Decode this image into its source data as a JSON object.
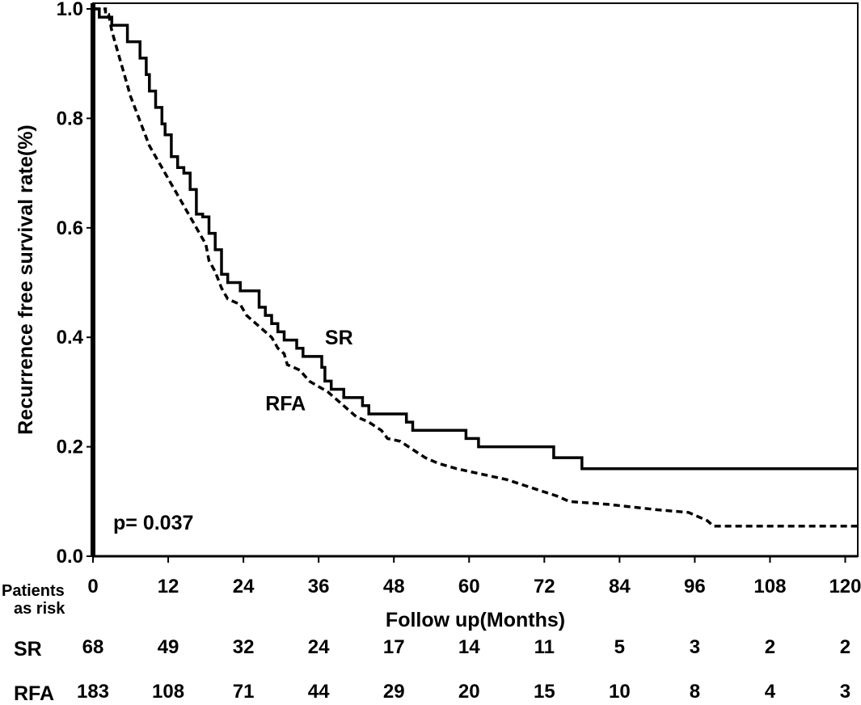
{
  "chart_data": {
    "type": "line",
    "title": "",
    "xlabel": "Follow up(Months)",
    "ylabel": "Recurrence free survival rate(%)",
    "xlim": [
      0,
      122
    ],
    "ylim": [
      0,
      1.0
    ],
    "x_ticks": [
      0,
      12,
      24,
      36,
      48,
      60,
      72,
      84,
      96,
      108,
      120
    ],
    "x_tick_labels": [
      "0",
      "12",
      "24",
      "36",
      "48",
      "60",
      "72",
      "84",
      "96",
      "108",
      "120"
    ],
    "y_ticks": [
      0,
      0.2,
      0.4,
      0.6,
      0.8,
      1.0
    ],
    "y_tick_labels": [
      "0.0",
      "0.2",
      "0.4",
      "0.6",
      "0.8",
      "1.0"
    ],
    "grid": false,
    "series": [
      {
        "name": "SR",
        "style": "solid",
        "label_at": [
          37,
          0.4
        ],
        "points": [
          [
            0,
            1.0
          ],
          [
            1,
            1.0
          ],
          [
            1,
            0.985
          ],
          [
            3,
            0.985
          ],
          [
            3,
            0.97
          ],
          [
            5.5,
            0.97
          ],
          [
            5.5,
            0.94
          ],
          [
            7.5,
            0.94
          ],
          [
            7.5,
            0.91
          ],
          [
            8.5,
            0.91
          ],
          [
            8.5,
            0.88
          ],
          [
            9,
            0.88
          ],
          [
            9,
            0.85
          ],
          [
            10,
            0.85
          ],
          [
            10,
            0.82
          ],
          [
            11,
            0.82
          ],
          [
            11,
            0.79
          ],
          [
            11.5,
            0.79
          ],
          [
            11.5,
            0.77
          ],
          [
            12.5,
            0.77
          ],
          [
            12.5,
            0.73
          ],
          [
            13.5,
            0.73
          ],
          [
            13.5,
            0.71
          ],
          [
            14.5,
            0.71
          ],
          [
            14.5,
            0.7
          ],
          [
            15.5,
            0.7
          ],
          [
            15.5,
            0.67
          ],
          [
            16.5,
            0.67
          ],
          [
            16.5,
            0.625
          ],
          [
            17.5,
            0.625
          ],
          [
            17.5,
            0.62
          ],
          [
            18.5,
            0.62
          ],
          [
            18.5,
            0.59
          ],
          [
            19.5,
            0.59
          ],
          [
            19.5,
            0.56
          ],
          [
            20.5,
            0.56
          ],
          [
            20.5,
            0.515
          ],
          [
            21.5,
            0.515
          ],
          [
            21.5,
            0.5
          ],
          [
            23.5,
            0.5
          ],
          [
            23.5,
            0.485
          ],
          [
            26.5,
            0.485
          ],
          [
            26.5,
            0.455
          ],
          [
            27.5,
            0.455
          ],
          [
            27.5,
            0.44
          ],
          [
            28.5,
            0.44
          ],
          [
            28.5,
            0.425
          ],
          [
            29.5,
            0.425
          ],
          [
            29.5,
            0.41
          ],
          [
            30.5,
            0.41
          ],
          [
            30.5,
            0.395
          ],
          [
            32.5,
            0.395
          ],
          [
            32.5,
            0.38
          ],
          [
            33.5,
            0.38
          ],
          [
            33.5,
            0.365
          ],
          [
            36.5,
            0.365
          ],
          [
            36.5,
            0.345
          ],
          [
            37,
            0.345
          ],
          [
            37,
            0.32
          ],
          [
            38,
            0.32
          ],
          [
            38,
            0.305
          ],
          [
            40,
            0.305
          ],
          [
            40,
            0.29
          ],
          [
            43,
            0.29
          ],
          [
            43,
            0.275
          ],
          [
            44,
            0.275
          ],
          [
            44,
            0.26
          ],
          [
            50,
            0.26
          ],
          [
            50,
            0.245
          ],
          [
            51,
            0.245
          ],
          [
            51,
            0.23
          ],
          [
            59.5,
            0.23
          ],
          [
            59.5,
            0.215
          ],
          [
            61.5,
            0.215
          ],
          [
            61.5,
            0.2
          ],
          [
            73.5,
            0.2
          ],
          [
            73.5,
            0.18
          ],
          [
            78,
            0.18
          ],
          [
            78,
            0.16
          ],
          [
            122,
            0.16
          ]
        ]
      },
      {
        "name": "RFA",
        "style": "dashed",
        "label_at": [
          27.5,
          0.28
        ],
        "points": [
          [
            0,
            1.0
          ],
          [
            2,
            1.0
          ],
          [
            2,
            0.99
          ],
          [
            2.5,
            0.99
          ],
          [
            3,
            0.96
          ],
          [
            4,
            0.92
          ],
          [
            5,
            0.88
          ],
          [
            6,
            0.84
          ],
          [
            7,
            0.81
          ],
          [
            8,
            0.78
          ],
          [
            9,
            0.75
          ],
          [
            10,
            0.73
          ],
          [
            11,
            0.71
          ],
          [
            12,
            0.69
          ],
          [
            13,
            0.67
          ],
          [
            14,
            0.65
          ],
          [
            15,
            0.63
          ],
          [
            16,
            0.61
          ],
          [
            17,
            0.59
          ],
          [
            18,
            0.57
          ],
          [
            18.5,
            0.54
          ],
          [
            19.5,
            0.52
          ],
          [
            20.5,
            0.49
          ],
          [
            21.5,
            0.47
          ],
          [
            23.5,
            0.46
          ],
          [
            24.5,
            0.44
          ],
          [
            26.5,
            0.42
          ],
          [
            28.5,
            0.4
          ],
          [
            29.5,
            0.38
          ],
          [
            30.5,
            0.37
          ],
          [
            31,
            0.35
          ],
          [
            33,
            0.34
          ],
          [
            34.5,
            0.32
          ],
          [
            36,
            0.31
          ],
          [
            37.5,
            0.3
          ],
          [
            39,
            0.285
          ],
          [
            40.5,
            0.27
          ],
          [
            42,
            0.255
          ],
          [
            44,
            0.245
          ],
          [
            46,
            0.23
          ],
          [
            47,
            0.215
          ],
          [
            49,
            0.21
          ],
          [
            51,
            0.195
          ],
          [
            53,
            0.18
          ],
          [
            55,
            0.17
          ],
          [
            58,
            0.16
          ],
          [
            62,
            0.15
          ],
          [
            66,
            0.14
          ],
          [
            70,
            0.125
          ],
          [
            74,
            0.11
          ],
          [
            76,
            0.1
          ],
          [
            82,
            0.095
          ],
          [
            86,
            0.09
          ],
          [
            90,
            0.085
          ],
          [
            95,
            0.08
          ],
          [
            98,
            0.065
          ],
          [
            99,
            0.055
          ],
          [
            122,
            0.055
          ]
        ]
      }
    ],
    "annotations": [
      {
        "text": "SR",
        "series": "SR"
      },
      {
        "text": "RFA",
        "series": "RFA"
      },
      {
        "text": "p= 0.037"
      }
    ],
    "risk_table": {
      "header_line1": "Patients",
      "header_line2": "as risk",
      "rows": [
        {
          "label": "SR",
          "values": [
            "68",
            "49",
            "32",
            "24",
            "17",
            "14",
            "11",
            "5",
            "3",
            "2",
            "2"
          ]
        },
        {
          "label": "RFA",
          "values": [
            "183",
            "108",
            "71",
            "44",
            "29",
            "20",
            "15",
            "10",
            "8",
            "4",
            "3"
          ]
        }
      ]
    }
  }
}
